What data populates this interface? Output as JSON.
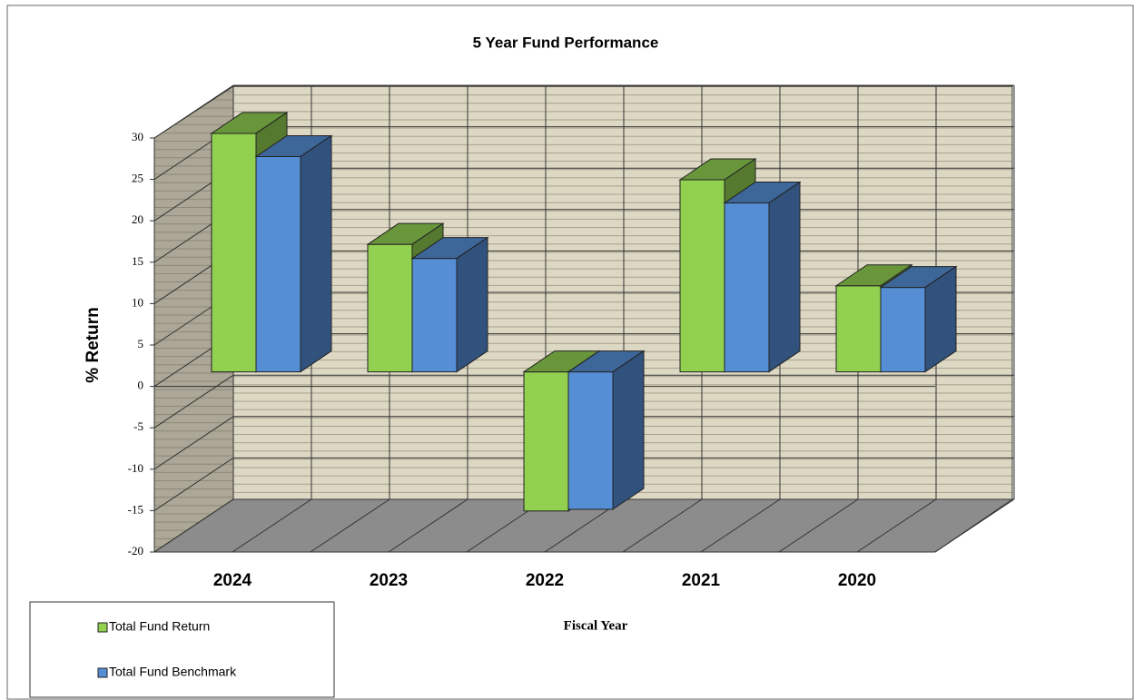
{
  "chart_data": {
    "type": "bar3d",
    "title": "5 Year Fund Performance",
    "x_label": "Fiscal Year",
    "y_label": "% Return",
    "categories": [
      "2024",
      "2023",
      "2022",
      "2021",
      "2020"
    ],
    "series": [
      {
        "name": "Total Fund Return",
        "color": "#92d050",
        "values": [
          28.8,
          15.4,
          -16.8,
          23.2,
          10.4
        ]
      },
      {
        "name": "Total Fund Benchmark",
        "color": "#558ed5",
        "values": [
          26.0,
          13.7,
          -16.6,
          20.4,
          10.2
        ]
      }
    ],
    "ylim": [
      -20,
      30
    ],
    "yticks": [
      -20,
      -15,
      -10,
      -5,
      0,
      5,
      10,
      15,
      20,
      25,
      30
    ],
    "grid": true,
    "legend": "bottom-left"
  }
}
